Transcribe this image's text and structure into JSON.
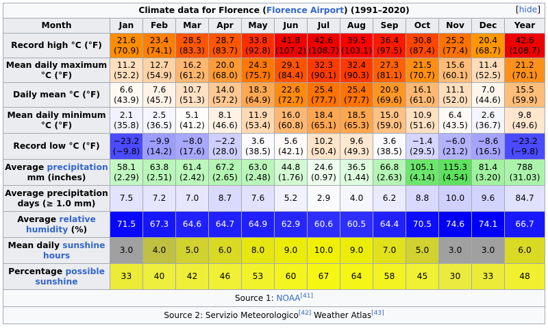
{
  "table": {
    "caption_prefix": "Climate data for Florence (",
    "caption_link": "Florence Airport",
    "caption_suffix": ") (1991–2020)",
    "hide_label": "hide",
    "month_label": "Month",
    "months": [
      "Jan",
      "Feb",
      "Mar",
      "Apr",
      "May",
      "Jun",
      "Jul",
      "Aug",
      "Sep",
      "Oct",
      "Nov",
      "Dec",
      "Year"
    ],
    "rows": [
      {
        "label_parts": [
          {
            "text": "Record high °C (°F)",
            "link": false
          }
        ],
        "cells": [
          {
            "v": "21.6",
            "s": "(70.9)",
            "bg": "#ff8d00"
          },
          {
            "v": "23.4",
            "s": "(74.1)",
            "bg": "#ff7f00"
          },
          {
            "v": "28.5",
            "s": "(83.3)",
            "bg": "#ff5700"
          },
          {
            "v": "28.7",
            "s": "(83.7)",
            "bg": "#ff5600"
          },
          {
            "v": "33.8",
            "s": "(92.8)",
            "bg": "#ff2e00"
          },
          {
            "v": "41.8",
            "s": "(107.2)",
            "bg": "#f20000"
          },
          {
            "v": "42.6",
            "s": "(108.7)",
            "bg": "#ee0000"
          },
          {
            "v": "39.5",
            "s": "(103.1)",
            "bg": "#ff0000"
          },
          {
            "v": "36.4",
            "s": "(97.5)",
            "bg": "#ff1900"
          },
          {
            "v": "30.8",
            "s": "(87.4)",
            "bg": "#ff4600"
          },
          {
            "v": "25.2",
            "s": "(77.4)",
            "bg": "#ff7200"
          },
          {
            "v": "20.4",
            "s": "(68.7)",
            "bg": "#ff9700"
          },
          {
            "v": "42.6",
            "s": "(108.7)",
            "bg": "#ee0000"
          }
        ]
      },
      {
        "label_parts": [
          {
            "text": "Mean daily maximum °C (°F)",
            "link": false
          }
        ],
        "cells": [
          {
            "v": "11.2",
            "s": "(52.2)",
            "bg": "#ffdfbf"
          },
          {
            "v": "12.7",
            "s": "(54.9)",
            "bg": "#ffd3a7"
          },
          {
            "v": "16.2",
            "s": "(61.2)",
            "bg": "#ffb770"
          },
          {
            "v": "20.0",
            "s": "(68.0)",
            "bg": "#ff9a35"
          },
          {
            "v": "24.3",
            "s": "(75.7)",
            "bg": "#ff7800"
          },
          {
            "v": "29.1",
            "s": "(84.4)",
            "bg": "#ff5300"
          },
          {
            "v": "32.3",
            "s": "(90.1)",
            "bg": "#ff3a00"
          },
          {
            "v": "32.4",
            "s": "(90.3)",
            "bg": "#ff3900"
          },
          {
            "v": "27.3",
            "s": "(81.1)",
            "bg": "#ff6100"
          },
          {
            "v": "21.5",
            "s": "(70.7)",
            "bg": "#ff8e13"
          },
          {
            "v": "15.6",
            "s": "(60.1)",
            "bg": "#ffbc79"
          },
          {
            "v": "11.4",
            "s": "(52.5)",
            "bg": "#ffddbb"
          },
          {
            "v": "21.2",
            "s": "(70.1)",
            "bg": "#ff901a"
          }
        ]
      },
      {
        "label_parts": [
          {
            "text": "Daily mean °C (°F)",
            "link": false
          }
        ],
        "cells": [
          {
            "v": "6.6",
            "s": "(43.9)",
            "bg": "#fff9f4"
          },
          {
            "v": "7.6",
            "s": "(45.7)",
            "bg": "#fff3e8"
          },
          {
            "v": "10.7",
            "s": "(51.3)",
            "bg": "#ffe1c3"
          },
          {
            "v": "14.0",
            "s": "(57.2)",
            "bg": "#ffc892"
          },
          {
            "v": "18.3",
            "s": "(64.9)",
            "bg": "#ffa854"
          },
          {
            "v": "22.6",
            "s": "(72.7)",
            "bg": "#ff8a10"
          },
          {
            "v": "25.4",
            "s": "(77.7)",
            "bg": "#ff7300"
          },
          {
            "v": "25.4",
            "s": "(77.7)",
            "bg": "#ff7300"
          },
          {
            "v": "20.9",
            "s": "(69.6)",
            "bg": "#ff9624"
          },
          {
            "v": "16.1",
            "s": "(61.0)",
            "bg": "#ffb873"
          },
          {
            "v": "11.1",
            "s": "(52.0)",
            "bg": "#ffdebd"
          },
          {
            "v": "7.0",
            "s": "(44.6)",
            "bg": "#fff7ee"
          },
          {
            "v": "15.5",
            "s": "(59.9)",
            "bg": "#ffbd7a"
          }
        ]
      },
      {
        "label_parts": [
          {
            "text": "Mean daily minimum °C (°F)",
            "link": false
          }
        ],
        "cells": [
          {
            "v": "2.1",
            "s": "(35.8)",
            "bg": "#f2f2ff"
          },
          {
            "v": "2.5",
            "s": "(36.5)",
            "bg": "#f5f5ff"
          },
          {
            "v": "5.1",
            "s": "(41.2)",
            "bg": "#fffdfc"
          },
          {
            "v": "8.1",
            "s": "(46.6)",
            "bg": "#fff1e4"
          },
          {
            "v": "11.9",
            "s": "(53.4)",
            "bg": "#ffd9b3"
          },
          {
            "v": "16.0",
            "s": "(60.8)",
            "bg": "#ffb874"
          },
          {
            "v": "18.4",
            "s": "(65.1)",
            "bg": "#ffa651"
          },
          {
            "v": "18.5",
            "s": "(65.3)",
            "bg": "#ffa64f"
          },
          {
            "v": "15.0",
            "s": "(59.0)",
            "bg": "#ffc184"
          },
          {
            "v": "10.9",
            "s": "(51.6)",
            "bg": "#ffe0c1"
          },
          {
            "v": "6.4",
            "s": "(43.5)",
            "bg": "#fffaf6"
          },
          {
            "v": "2.6",
            "s": "(36.7)",
            "bg": "#f6f6ff"
          },
          {
            "v": "9.8",
            "s": "(49.6)",
            "bg": "#ffe6cd"
          }
        ]
      },
      {
        "label_parts": [
          {
            "text": "Record low °C (°F)",
            "link": false
          }
        ],
        "cells": [
          {
            "v": "−23.2",
            "s": "(−9.8)",
            "bg": "#4b4bff"
          },
          {
            "v": "−9.9",
            "s": "(14.2)",
            "bg": "#9d9dff"
          },
          {
            "v": "−8.0",
            "s": "(17.6)",
            "bg": "#a8a8ff"
          },
          {
            "v": "−2.2",
            "s": "(28.0)",
            "bg": "#cfcfff"
          },
          {
            "v": "3.6",
            "s": "(38.5)",
            "bg": "#fbfbff"
          },
          {
            "v": "5.6",
            "s": "(42.1)",
            "bg": "#fffbf8"
          },
          {
            "v": "10.2",
            "s": "(50.4)",
            "bg": "#ffe4c9"
          },
          {
            "v": "9.6",
            "s": "(49.3)",
            "bg": "#ffe7d0"
          },
          {
            "v": "3.6",
            "s": "(38.5)",
            "bg": "#fbfbff"
          },
          {
            "v": "−1.4",
            "s": "(29.5)",
            "bg": "#d5d5ff"
          },
          {
            "v": "−6.0",
            "s": "(21.2)",
            "bg": "#b3b3ff"
          },
          {
            "v": "−8.6",
            "s": "(16.5)",
            "bg": "#a4a4ff"
          },
          {
            "v": "−23.2",
            "s": "(−9.8)",
            "bg": "#4b4bff"
          }
        ]
      },
      {
        "label_parts": [
          {
            "text": "Average ",
            "link": false
          },
          {
            "text": "precipitation",
            "link": true
          },
          {
            "text": " mm (inches)",
            "link": false
          }
        ],
        "cells": [
          {
            "v": "58.1",
            "s": "(2.29)",
            "bg": "#c2f8c2"
          },
          {
            "v": "63.8",
            "s": "(2.51)",
            "bg": "#b9f6b9"
          },
          {
            "v": "61.4",
            "s": "(2.42)",
            "bg": "#bcf7bc"
          },
          {
            "v": "67.2",
            "s": "(2.65)",
            "bg": "#b4f5b4"
          },
          {
            "v": "63.0",
            "s": "(2.48)",
            "bg": "#baf6ba"
          },
          {
            "v": "44.8",
            "s": "(1.76)",
            "bg": "#d3fad3"
          },
          {
            "v": "24.6",
            "s": "(0.97)",
            "bg": "#eefeee"
          },
          {
            "v": "36.5",
            "s": "(1.44)",
            "bg": "#defcde"
          },
          {
            "v": "66.8",
            "s": "(2.63)",
            "bg": "#b5f5b5"
          },
          {
            "v": "105.1",
            "s": "(4.14)",
            "bg": "#6de66d"
          },
          {
            "v": "115.3",
            "s": "(4.54)",
            "bg": "#5ee25e"
          },
          {
            "v": "81.4",
            "s": "(3.20)",
            "bg": "#a1f1a1"
          },
          {
            "v": "788",
            "s": "(31.03)",
            "bg": "#abf3ab"
          }
        ]
      },
      {
        "label_parts": [
          {
            "text": "Average precipitation days (≥ 1.0 mm)",
            "link": false
          }
        ],
        "cells": [
          {
            "v": "7.5",
            "s": "",
            "bg": "#e3e3ff"
          },
          {
            "v": "7.2",
            "s": "",
            "bg": "#e5e5ff"
          },
          {
            "v": "7.0",
            "s": "",
            "bg": "#e6e6ff"
          },
          {
            "v": "8.7",
            "s": "",
            "bg": "#dadaff"
          },
          {
            "v": "7.6",
            "s": "",
            "bg": "#e2e2ff"
          },
          {
            "v": "5.2",
            "s": "",
            "bg": "#f1f1ff"
          },
          {
            "v": "2.9",
            "s": "",
            "bg": "#fafaff"
          },
          {
            "v": "4.0",
            "s": "",
            "bg": "#f6f6ff"
          },
          {
            "v": "6.2",
            "s": "",
            "bg": "#ebebff"
          },
          {
            "v": "8.8",
            "s": "",
            "bg": "#d9d9ff"
          },
          {
            "v": "10.0",
            "s": "",
            "bg": "#d0d0ff"
          },
          {
            "v": "9.6",
            "s": "",
            "bg": "#d3d3ff"
          },
          {
            "v": "84.7",
            "s": "",
            "bg": "#e0e0ff"
          }
        ]
      },
      {
        "label_parts": [
          {
            "text": "Average ",
            "link": false
          },
          {
            "text": "relative humidity",
            "link": true
          },
          {
            "text": " (%)",
            "link": false
          }
        ],
        "cells": [
          {
            "v": "71.5",
            "s": "",
            "bg": "#0808ff"
          },
          {
            "v": "67.3",
            "s": "",
            "bg": "#1616ff"
          },
          {
            "v": "64.6",
            "s": "",
            "bg": "#2020ff"
          },
          {
            "v": "64.7",
            "s": "",
            "bg": "#2020ff"
          },
          {
            "v": "64.9",
            "s": "",
            "bg": "#1f1fff"
          },
          {
            "v": "62.9",
            "s": "",
            "bg": "#2626ff"
          },
          {
            "v": "60.6",
            "s": "",
            "bg": "#2e2eff"
          },
          {
            "v": "60.5",
            "s": "",
            "bg": "#2e2eff"
          },
          {
            "v": "64.4",
            "s": "",
            "bg": "#2121ff"
          },
          {
            "v": "70.5",
            "s": "",
            "bg": "#0c0cff"
          },
          {
            "v": "74.6",
            "s": "",
            "bg": "#0000f8"
          },
          {
            "v": "74.1",
            "s": "",
            "bg": "#0000fa"
          },
          {
            "v": "66.7",
            "s": "",
            "bg": "#1818ff"
          }
        ],
        "text_color": "#ffffff"
      },
      {
        "label_parts": [
          {
            "text": "Mean daily ",
            "link": false
          },
          {
            "text": "sunshine hours",
            "link": true
          }
        ],
        "cells": [
          {
            "v": "3.0",
            "s": "",
            "bg": "#a0a0a0"
          },
          {
            "v": "4.0",
            "s": "",
            "bg": "#c0c042"
          },
          {
            "v": "5.0",
            "s": "",
            "bg": "#d1d130"
          },
          {
            "v": "6.0",
            "s": "",
            "bg": "#dada24"
          },
          {
            "v": "8.0",
            "s": "",
            "bg": "#e6e612"
          },
          {
            "v": "9.0",
            "s": "",
            "bg": "#ecec0a"
          },
          {
            "v": "10.0",
            "s": "",
            "bg": "#f0f000"
          },
          {
            "v": "9.0",
            "s": "",
            "bg": "#ecec0a"
          },
          {
            "v": "7.0",
            "s": "",
            "bg": "#e1e11c"
          },
          {
            "v": "5.0",
            "s": "",
            "bg": "#d1d130"
          },
          {
            "v": "3.0",
            "s": "",
            "bg": "#a0a0a0"
          },
          {
            "v": "3.0",
            "s": "",
            "bg": "#a0a0a0"
          },
          {
            "v": "6.0",
            "s": "",
            "bg": "#dada24"
          }
        ]
      },
      {
        "label_parts": [
          {
            "text": "Percentage ",
            "link": false
          },
          {
            "text": "possible sunshine",
            "link": true
          }
        ],
        "cells": [
          {
            "v": "33",
            "s": "",
            "bg": "#ebeb38"
          },
          {
            "v": "40",
            "s": "",
            "bg": "#eeee3c"
          },
          {
            "v": "42",
            "s": "",
            "bg": "#efef39"
          },
          {
            "v": "46",
            "s": "",
            "bg": "#f0f034"
          },
          {
            "v": "53",
            "s": "",
            "bg": "#f2f22a"
          },
          {
            "v": "60",
            "s": "",
            "bg": "#f4f41f"
          },
          {
            "v": "67",
            "s": "",
            "bg": "#f6f613"
          },
          {
            "v": "64",
            "s": "",
            "bg": "#f5f518"
          },
          {
            "v": "58",
            "s": "",
            "bg": "#f3f322"
          },
          {
            "v": "45",
            "s": "",
            "bg": "#f0f035"
          },
          {
            "v": "30",
            "s": "",
            "bg": "#eaea3f"
          },
          {
            "v": "33",
            "s": "",
            "bg": "#ebeb38"
          },
          {
            "v": "48",
            "s": "",
            "bg": "#f0f031"
          }
        ]
      }
    ],
    "source1_prefix": "Source 1: ",
    "source1_link": "NOAA",
    "source1_ref": "[41]",
    "source2_prefix": "Source 2: Servizio Meteorologico",
    "source2_ref1": "[42]",
    "source2_mid": " Weather Atlas",
    "source2_ref2": "[43]"
  }
}
